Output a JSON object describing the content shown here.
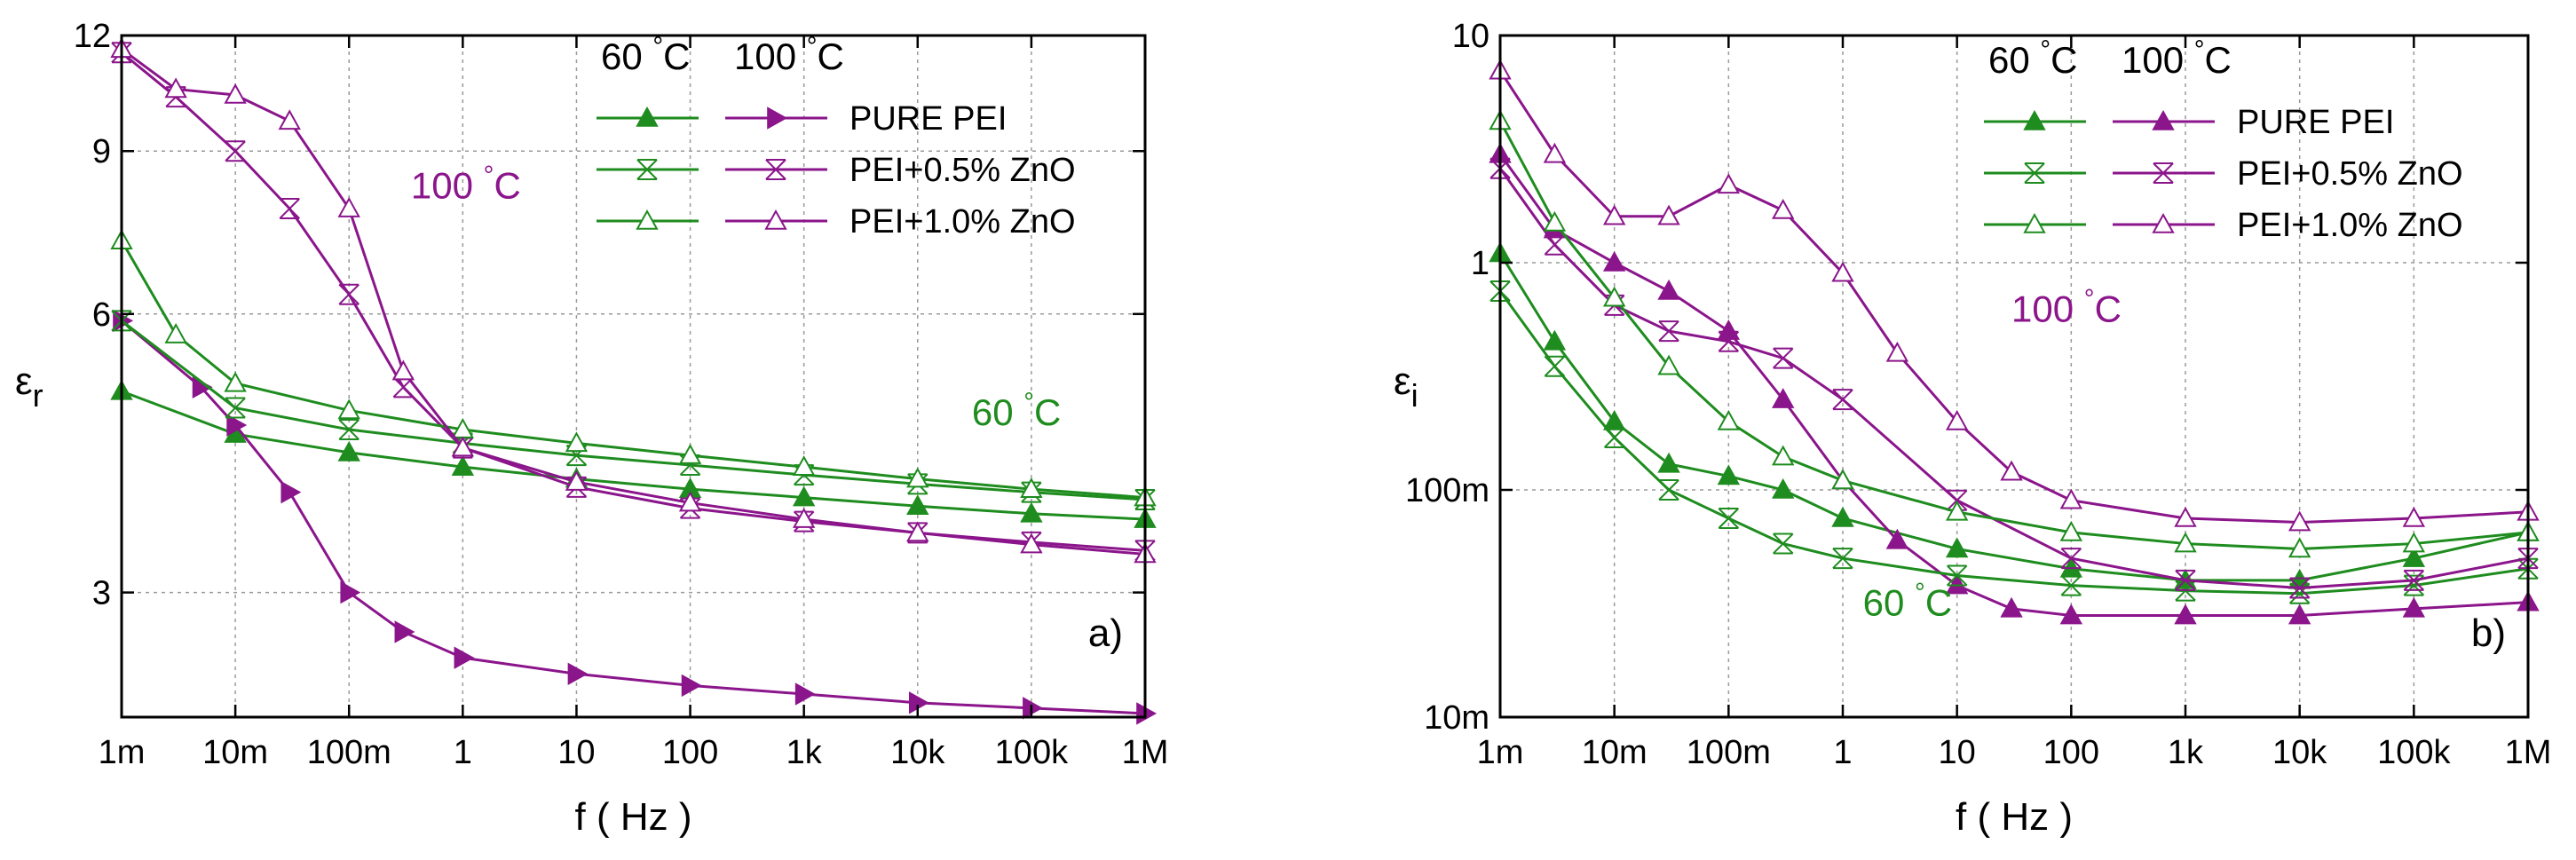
{
  "colors": {
    "green": "#1e8c1e",
    "purple": "#8b158b",
    "grid": "#9a9a9a"
  },
  "chart_data": [
    {
      "id": "a",
      "type": "line",
      "panel_label": "a)",
      "xlabel": "f ( Hz )",
      "ylabel_main": "ε",
      "ylabel_sub": "r",
      "xscale": "log",
      "yscale": "log",
      "xlim": [
        0.001,
        1000000
      ],
      "ylim": [
        2.2,
        12
      ],
      "x_ticks": [
        {
          "v": 0.001,
          "label": "1m"
        },
        {
          "v": 0.01,
          "label": "10m"
        },
        {
          "v": 0.1,
          "label": "100m"
        },
        {
          "v": 1,
          "label": "1"
        },
        {
          "v": 10,
          "label": "10"
        },
        {
          "v": 100,
          "label": "100"
        },
        {
          "v": 1000,
          "label": "1k"
        },
        {
          "v": 10000,
          "label": "10k"
        },
        {
          "v": 100000,
          "label": "100k"
        },
        {
          "v": 1000000,
          "label": "1M"
        }
      ],
      "y_ticks": [
        {
          "v": 3,
          "label": "3"
        },
        {
          "v": 6,
          "label": "6"
        },
        {
          "v": 9,
          "label": "9"
        },
        {
          "v": 12,
          "label": "12"
        }
      ],
      "legend": {
        "header_green": "60 °C",
        "header_purple": "100 °C",
        "entries": [
          "PURE PEI",
          "PEI+0.5% ZnO",
          "PEI+1.0% ZnO"
        ]
      },
      "annotations": [
        {
          "text": "100 °C",
          "color": "purple",
          "x": 0.35,
          "y": 8.0
        },
        {
          "text": "60 °C",
          "color": "green",
          "x": 30000,
          "y": 4.55
        }
      ],
      "series": [
        {
          "name": "PURE PEI 60 °C",
          "color": "green",
          "marker": "tri-up-filled",
          "x": [
            0.001,
            0.01,
            0.1,
            1,
            10,
            100,
            1000,
            10000,
            100000,
            1000000
          ],
          "y": [
            4.95,
            4.45,
            4.25,
            4.1,
            3.98,
            3.88,
            3.8,
            3.72,
            3.65,
            3.6
          ]
        },
        {
          "name": "PURE PEI 100 °C",
          "color": "purple",
          "marker": "tri-right-filled",
          "x": [
            0.001,
            0.005,
            0.01,
            0.03,
            0.1,
            0.3,
            1,
            10,
            100,
            1000,
            10000,
            100000,
            1000000
          ],
          "y": [
            5.9,
            5.0,
            4.55,
            3.85,
            3.0,
            2.72,
            2.55,
            2.45,
            2.38,
            2.33,
            2.28,
            2.25,
            2.22
          ]
        },
        {
          "name": "PEI+0.5% ZnO 60 °C",
          "color": "green",
          "marker": "star",
          "x": [
            0.001,
            0.01,
            0.1,
            1,
            10,
            100,
            1000,
            10000,
            100000,
            1000000
          ],
          "y": [
            5.9,
            4.75,
            4.5,
            4.35,
            4.22,
            4.12,
            4.02,
            3.93,
            3.85,
            3.78
          ]
        },
        {
          "name": "PEI+0.5% ZnO 100 °C",
          "color": "purple",
          "marker": "star",
          "x": [
            0.001,
            0.003,
            0.01,
            0.03,
            0.1,
            0.3,
            1,
            10,
            100,
            1000,
            10000,
            100000,
            1000000
          ],
          "y": [
            11.5,
            10.3,
            9.0,
            7.8,
            6.3,
            5.0,
            4.3,
            3.9,
            3.7,
            3.58,
            3.48,
            3.4,
            3.33
          ]
        },
        {
          "name": "PEI+1.0% ZnO 60 °C",
          "color": "green",
          "marker": "tri-up-open",
          "x": [
            0.001,
            0.003,
            0.01,
            0.1,
            1,
            10,
            100,
            1000,
            10000,
            100000,
            1000000
          ],
          "y": [
            7.2,
            5.7,
            5.05,
            4.72,
            4.5,
            4.35,
            4.22,
            4.1,
            3.98,
            3.88,
            3.8
          ]
        },
        {
          "name": "PEI+1.0% ZnO 100 °C",
          "color": "purple",
          "marker": "tri-up-open",
          "x": [
            0.001,
            0.003,
            0.01,
            0.03,
            0.1,
            0.3,
            1,
            10,
            100,
            1000,
            10000,
            100000,
            1000000
          ],
          "y": [
            11.6,
            10.5,
            10.35,
            9.7,
            7.8,
            5.2,
            4.3,
            3.95,
            3.75,
            3.6,
            3.48,
            3.38,
            3.3
          ]
        }
      ]
    },
    {
      "id": "b",
      "type": "line",
      "panel_label": "b)",
      "xlabel": "f ( Hz )",
      "ylabel_main": "ε",
      "ylabel_sub": "i",
      "xscale": "log",
      "yscale": "log",
      "xlim": [
        0.001,
        1000000
      ],
      "ylim": [
        0.01,
        10
      ],
      "x_ticks": [
        {
          "v": 0.001,
          "label": "1m"
        },
        {
          "v": 0.01,
          "label": "10m"
        },
        {
          "v": 0.1,
          "label": "100m"
        },
        {
          "v": 1,
          "label": "1"
        },
        {
          "v": 10,
          "label": "10"
        },
        {
          "v": 100,
          "label": "100"
        },
        {
          "v": 1000,
          "label": "1k"
        },
        {
          "v": 10000,
          "label": "10k"
        },
        {
          "v": 100000,
          "label": "100k"
        },
        {
          "v": 1000000,
          "label": "1M"
        }
      ],
      "y_ticks": [
        {
          "v": 0.01,
          "label": "10m"
        },
        {
          "v": 0.1,
          "label": "100m"
        },
        {
          "v": 1,
          "label": "1"
        },
        {
          "v": 10,
          "label": "10"
        }
      ],
      "legend": {
        "header_green": "60 °C",
        "header_purple": "100 °C",
        "entries": [
          "PURE PEI",
          "PEI+0.5% ZnO",
          "PEI+1.0% ZnO"
        ]
      },
      "annotations": [
        {
          "text": "100 °C",
          "color": "purple",
          "x": 30,
          "y": 0.55
        },
        {
          "text": "60 °C",
          "color": "green",
          "x": 1.5,
          "y": 0.028
        }
      ],
      "series": [
        {
          "name": "PURE PEI 60 °C",
          "color": "green",
          "marker": "tri-up-filled",
          "x": [
            0.001,
            0.003,
            0.01,
            0.03,
            0.1,
            0.3,
            1,
            10,
            100,
            1000,
            10000,
            100000,
            1000000
          ],
          "y": [
            1.1,
            0.45,
            0.2,
            0.13,
            0.115,
            0.1,
            0.075,
            0.055,
            0.045,
            0.04,
            0.04,
            0.05,
            0.065
          ]
        },
        {
          "name": "PURE PEI 100 °C",
          "color": "purple",
          "marker": "tri-up-filled",
          "x": [
            0.001,
            0.003,
            0.01,
            0.03,
            0.1,
            0.3,
            1,
            3,
            10,
            30,
            100,
            1000,
            10000,
            100000,
            1000000
          ],
          "y": [
            3.0,
            1.4,
            1.0,
            0.75,
            0.5,
            0.25,
            0.11,
            0.06,
            0.038,
            0.03,
            0.028,
            0.028,
            0.028,
            0.03,
            0.032
          ]
        },
        {
          "name": "PEI+0.5% ZnO 60 °C",
          "color": "green",
          "marker": "star",
          "x": [
            0.001,
            0.003,
            0.01,
            0.03,
            0.1,
            0.3,
            1,
            10,
            100,
            1000,
            10000,
            100000,
            1000000
          ],
          "y": [
            0.75,
            0.35,
            0.17,
            0.1,
            0.075,
            0.058,
            0.05,
            0.042,
            0.038,
            0.036,
            0.035,
            0.038,
            0.045
          ]
        },
        {
          "name": "PEI+0.5% ZnO 100 °C",
          "color": "purple",
          "marker": "star",
          "x": [
            0.001,
            0.003,
            0.01,
            0.03,
            0.1,
            0.3,
            1,
            10,
            100,
            1000,
            10000,
            100000,
            1000000
          ],
          "y": [
            2.6,
            1.2,
            0.65,
            0.5,
            0.45,
            0.38,
            0.25,
            0.09,
            0.05,
            0.04,
            0.037,
            0.04,
            0.05
          ]
        },
        {
          "name": "PEI+1.0% ZnO 60 °C",
          "color": "green",
          "marker": "tri-up-open",
          "x": [
            0.001,
            0.003,
            0.01,
            0.03,
            0.1,
            0.3,
            1,
            10,
            100,
            1000,
            10000,
            100000,
            1000000
          ],
          "y": [
            4.2,
            1.5,
            0.7,
            0.35,
            0.2,
            0.14,
            0.11,
            0.08,
            0.065,
            0.058,
            0.055,
            0.058,
            0.065
          ]
        },
        {
          "name": "PEI+1.0% ZnO 100 °C",
          "color": "purple",
          "marker": "tri-up-open",
          "x": [
            0.001,
            0.003,
            0.01,
            0.03,
            0.1,
            0.3,
            1,
            3,
            10,
            30,
            100,
            1000,
            10000,
            100000,
            1000000
          ],
          "y": [
            7.0,
            3.0,
            1.6,
            1.6,
            2.2,
            1.7,
            0.9,
            0.4,
            0.2,
            0.12,
            0.09,
            0.075,
            0.072,
            0.075,
            0.08
          ]
        }
      ]
    }
  ]
}
